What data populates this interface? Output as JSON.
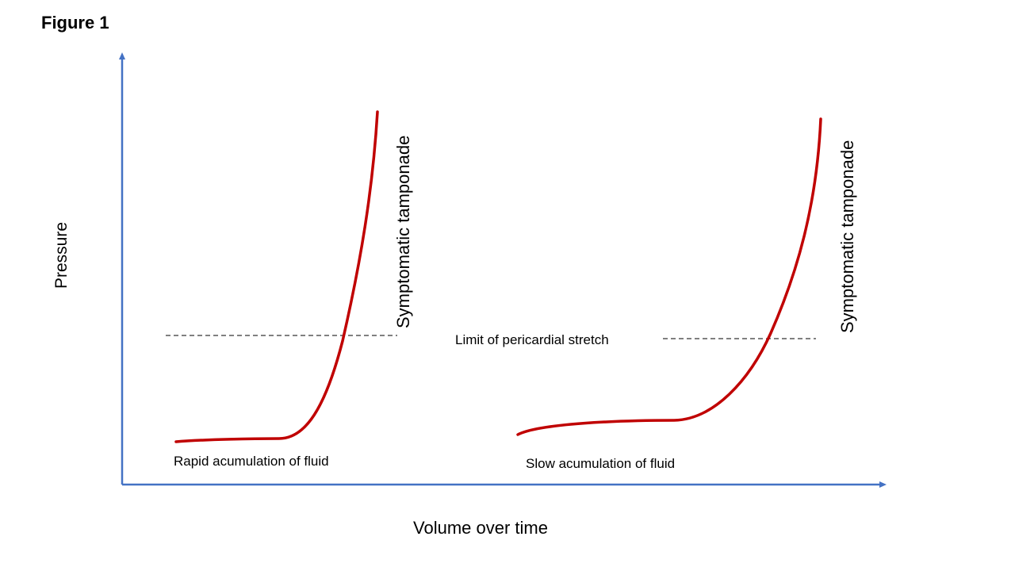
{
  "figure_title": "Figure 1",
  "axes": {
    "y_label": "Pressure",
    "x_label": "Volume over time"
  },
  "colors": {
    "axis": "#4472C4",
    "curve": "#C00000",
    "dash": "#000000"
  },
  "curves": [
    {
      "label": "Rapid acumulation of fluid",
      "endpoint_label": "Symptomatic tamponade"
    },
    {
      "label": "Slow acumulation of fluid",
      "endpoint_label": "Symptomatic tamponade"
    }
  ],
  "threshold_label": "Limit of pericardial stretch"
}
